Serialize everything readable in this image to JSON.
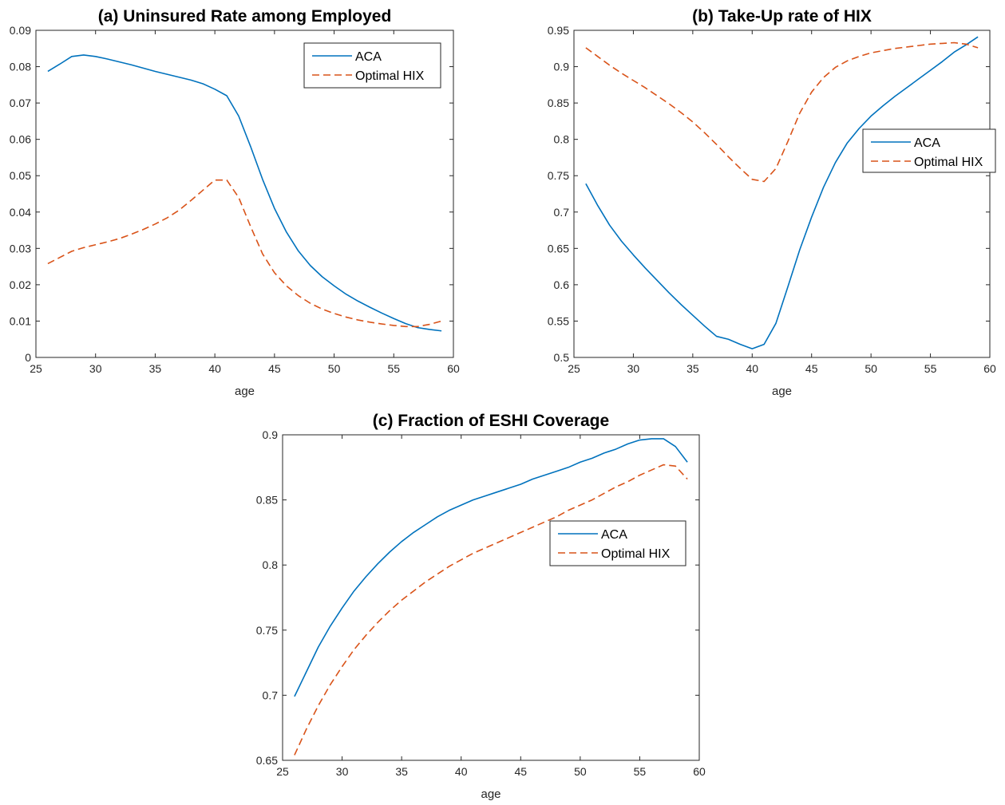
{
  "colors": {
    "aca": "#0072BD",
    "optimal": "#D95319",
    "axis": "#262626"
  },
  "chart_data": [
    {
      "id": "a",
      "type": "line",
      "title": "(a) Uninsured Rate among Employed",
      "xlabel": "age",
      "ylabel": "",
      "xlim": [
        25,
        60
      ],
      "ylim": [
        0,
        0.09
      ],
      "xticks": [
        25,
        30,
        35,
        40,
        45,
        50,
        55,
        60
      ],
      "yticks": [
        0,
        0.01,
        0.02,
        0.03,
        0.04,
        0.05,
        0.06,
        0.07,
        0.08,
        0.09
      ],
      "ytick_labels": [
        "0",
        "0.01",
        "0.02",
        "0.03",
        "0.04",
        "0.05",
        "0.06",
        "0.07",
        "0.08",
        "0.09"
      ],
      "legend": "top-right",
      "x": [
        26,
        27,
        28,
        29,
        30,
        31,
        32,
        33,
        34,
        35,
        36,
        37,
        38,
        39,
        40,
        41,
        42,
        43,
        44,
        45,
        46,
        47,
        48,
        49,
        50,
        51,
        52,
        53,
        54,
        55,
        56,
        57,
        58,
        59
      ],
      "series": [
        {
          "name": "ACA",
          "style": "solid",
          "values": [
            0.0787,
            0.0807,
            0.0828,
            0.0832,
            0.0828,
            0.0821,
            0.0813,
            0.0805,
            0.0796,
            0.0787,
            0.0779,
            0.0771,
            0.0763,
            0.0753,
            0.0738,
            0.072,
            0.0664,
            0.058,
            0.049,
            0.041,
            0.0345,
            0.0293,
            0.0253,
            0.0222,
            0.0197,
            0.0174,
            0.0155,
            0.0138,
            0.0122,
            0.0107,
            0.0093,
            0.0082,
            0.0077,
            0.0073
          ]
        },
        {
          "name": "Optimal HIX",
          "style": "dashed",
          "values": [
            0.0258,
            0.0275,
            0.0292,
            0.0302,
            0.031,
            0.0318,
            0.0327,
            0.0339,
            0.0352,
            0.0367,
            0.0384,
            0.0405,
            0.0432,
            0.046,
            0.0488,
            0.0488,
            0.044,
            0.036,
            0.0285,
            0.0233,
            0.0197,
            0.017,
            0.0149,
            0.0133,
            0.0121,
            0.0111,
            0.0103,
            0.0097,
            0.0092,
            0.0088,
            0.0085,
            0.0085,
            0.0091,
            0.01
          ]
        }
      ]
    },
    {
      "id": "b",
      "type": "line",
      "title": "(b) Take-Up rate of HIX",
      "xlabel": "age",
      "ylabel": "",
      "xlim": [
        25,
        60
      ],
      "ylim": [
        0.5,
        0.95
      ],
      "xticks": [
        25,
        30,
        35,
        40,
        45,
        50,
        55,
        60
      ],
      "yticks": [
        0.5,
        0.55,
        0.6,
        0.65,
        0.7,
        0.75,
        0.8,
        0.85,
        0.9,
        0.95
      ],
      "ytick_labels": [
        "0.5",
        "0.55",
        "0.6",
        "0.65",
        "0.7",
        "0.75",
        "0.8",
        "0.85",
        "0.9",
        "0.95"
      ],
      "legend": "right",
      "x": [
        26,
        27,
        28,
        29,
        30,
        31,
        32,
        33,
        34,
        35,
        36,
        37,
        38,
        39,
        40,
        41,
        42,
        43,
        44,
        45,
        46,
        47,
        48,
        49,
        50,
        51,
        52,
        53,
        54,
        55,
        56,
        57,
        58,
        59
      ],
      "series": [
        {
          "name": "ACA",
          "style": "solid",
          "values": [
            0.739,
            0.709,
            0.682,
            0.66,
            0.641,
            0.623,
            0.606,
            0.589,
            0.573,
            0.558,
            0.543,
            0.529,
            0.525,
            0.518,
            0.512,
            0.518,
            0.547,
            0.597,
            0.648,
            0.693,
            0.734,
            0.768,
            0.795,
            0.815,
            0.832,
            0.846,
            0.859,
            0.871,
            0.883,
            0.895,
            0.907,
            0.92,
            0.93,
            0.941
          ]
        },
        {
          "name": "Optimal HIX",
          "style": "dashed",
          "values": [
            0.926,
            0.914,
            0.902,
            0.891,
            0.881,
            0.871,
            0.86,
            0.849,
            0.837,
            0.824,
            0.809,
            0.793,
            0.776,
            0.76,
            0.745,
            0.742,
            0.76,
            0.797,
            0.836,
            0.865,
            0.885,
            0.899,
            0.908,
            0.914,
            0.919,
            0.922,
            0.925,
            0.927,
            0.929,
            0.931,
            0.932,
            0.933,
            0.931,
            0.926
          ]
        }
      ]
    },
    {
      "id": "c",
      "type": "line",
      "title": "(c) Fraction of ESHI Coverage",
      "xlabel": "age",
      "ylabel": "",
      "xlim": [
        25,
        60
      ],
      "ylim": [
        0.65,
        0.9
      ],
      "xticks": [
        25,
        30,
        35,
        40,
        45,
        50,
        55,
        60
      ],
      "yticks": [
        0.65,
        0.7,
        0.75,
        0.8,
        0.85,
        0.9
      ],
      "ytick_labels": [
        "0.65",
        "0.7",
        "0.75",
        "0.8",
        "0.85",
        "0.9"
      ],
      "legend": "right",
      "x": [
        26,
        27,
        28,
        29,
        30,
        31,
        32,
        33,
        34,
        35,
        36,
        37,
        38,
        39,
        40,
        41,
        42,
        43,
        44,
        45,
        46,
        47,
        48,
        49,
        50,
        51,
        52,
        53,
        54,
        55,
        56,
        57,
        58,
        59
      ],
      "series": [
        {
          "name": "ACA",
          "style": "solid",
          "values": [
            0.699,
            0.718,
            0.737,
            0.753,
            0.767,
            0.78,
            0.791,
            0.801,
            0.81,
            0.818,
            0.825,
            0.831,
            0.837,
            0.842,
            0.846,
            0.85,
            0.853,
            0.856,
            0.859,
            0.862,
            0.866,
            0.869,
            0.872,
            0.875,
            0.879,
            0.882,
            0.886,
            0.889,
            0.893,
            0.896,
            0.897,
            0.897,
            0.891,
            0.879
          ]
        },
        {
          "name": "Optimal HIX",
          "style": "dashed",
          "values": [
            0.654,
            0.674,
            0.692,
            0.708,
            0.722,
            0.735,
            0.746,
            0.756,
            0.765,
            0.773,
            0.78,
            0.787,
            0.793,
            0.799,
            0.804,
            0.809,
            0.813,
            0.817,
            0.821,
            0.825,
            0.829,
            0.833,
            0.837,
            0.842,
            0.846,
            0.85,
            0.855,
            0.86,
            0.864,
            0.869,
            0.873,
            0.877,
            0.876,
            0.866
          ]
        }
      ]
    }
  ]
}
